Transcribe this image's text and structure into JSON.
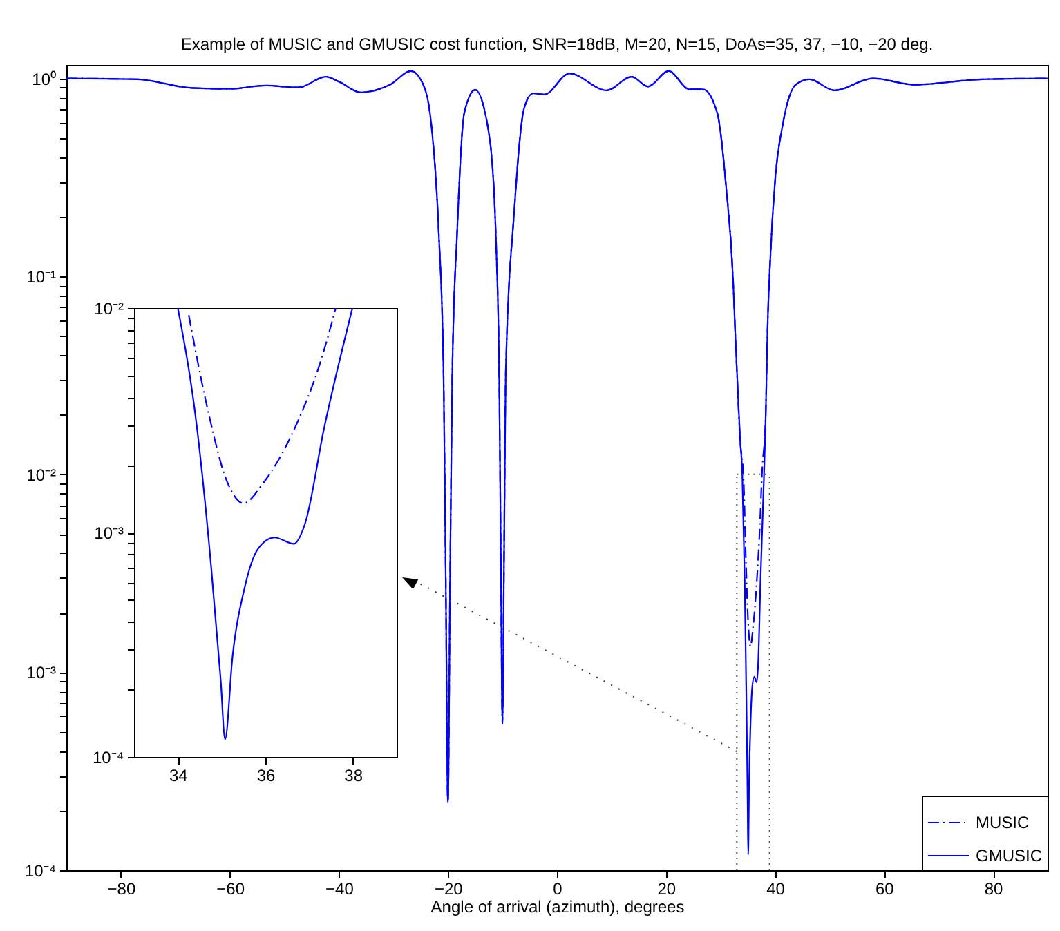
{
  "chart_data": [
    {
      "type": "line",
      "title": "Example of MUSIC and GMUSIC cost function, SNR=18dB, M=20, N=15, DoAs=35, 37, −10, −20 deg.",
      "xlabel": "Angle of arrival (azimuth), degrees",
      "log": "y",
      "legend": "bottom right",
      "ref_lines": [
        {
          "axis": "x",
          "value": 33,
          "color": "#555555",
          "line_style": "dotted"
        },
        {
          "axis": "x",
          "value": 39,
          "color": "#555555",
          "line_style": "dotted"
        }
      ],
      "xlim": [
        -90,
        90
      ],
      "xticks": [
        -80,
        -60,
        -40,
        -20,
        0,
        20,
        40,
        60,
        80
      ],
      "ylim": [
        0.0001,
        1.17
      ],
      "yticks": [
        {
          "value": 0.0001,
          "label": "10⁻⁴"
        },
        {
          "value": 0.0002,
          "label": null
        },
        {
          "value": 0.0003,
          "label": null
        },
        {
          "value": 0.0004,
          "label": null
        },
        {
          "value": 0.0005,
          "label": null
        },
        {
          "value": 0.0006,
          "label": null
        },
        {
          "value": 0.0007,
          "label": null
        },
        {
          "value": 0.0008,
          "label": null
        },
        {
          "value": 0.0009,
          "label": null
        },
        {
          "value": 0.001,
          "label": "10⁻³"
        },
        {
          "value": 0.002,
          "label": null
        },
        {
          "value": 0.003,
          "label": null
        },
        {
          "value": 0.004,
          "label": null
        },
        {
          "value": 0.005,
          "label": null
        },
        {
          "value": 0.006,
          "label": null
        },
        {
          "value": 0.007,
          "label": null
        },
        {
          "value": 0.008,
          "label": null
        },
        {
          "value": 0.009,
          "label": null
        },
        {
          "value": 0.01,
          "label": "10⁻²"
        },
        {
          "value": 0.02,
          "label": null
        },
        {
          "value": 0.03,
          "label": null
        },
        {
          "value": 0.04,
          "label": null
        },
        {
          "value": 0.05,
          "label": null
        },
        {
          "value": 0.06,
          "label": null
        },
        {
          "value": 0.07,
          "label": null
        },
        {
          "value": 0.08,
          "label": null
        },
        {
          "value": 0.09,
          "label": null
        },
        {
          "value": 0.1,
          "label": "10⁻¹"
        },
        {
          "value": 0.2,
          "label": null
        },
        {
          "value": 0.3,
          "label": null
        },
        {
          "value": 0.4,
          "label": null
        },
        {
          "value": 0.5,
          "label": null
        },
        {
          "value": 0.6,
          "label": null
        },
        {
          "value": 0.7,
          "label": null
        },
        {
          "value": 0.8,
          "label": null
        },
        {
          "value": 0.9,
          "label": null
        },
        {
          "value": 1,
          "label": "10⁰"
        }
      ],
      "series": [
        {
          "name": "MUSIC",
          "color": "#0000ff",
          "line_style": "dashed",
          "x": [
            -90,
            -77,
            -67,
            -60,
            -53.4,
            -47.4,
            -42.4,
            -39.9,
            -36,
            -30.6,
            -26.8,
            -24.6,
            -23,
            -21.7,
            -20.8,
            -20.4,
            -20,
            -19.6,
            -19.2,
            -18.3,
            -17,
            -15,
            -12.4,
            -11.1,
            -10.6,
            -10.3,
            -10,
            -9.7,
            -9.4,
            -7.8,
            -6,
            -4.4,
            -2.3,
            2.3,
            9.1,
            13.7,
            16.7,
            20.5,
            24.3,
            26.8,
            29.4,
            31,
            32.3,
            32.8,
            33.6,
            34.25,
            34.66,
            35.14,
            35.5,
            35.95,
            36.7,
            37.24,
            37.61,
            38.3,
            38.6,
            39.3,
            40,
            41.5,
            43.8,
            46.3,
            50.9,
            58,
            65.6,
            78,
            90
          ],
          "values": [
            1.0,
            0.99,
            0.895,
            0.886,
            0.92,
            0.9,
            1.02,
            0.96,
            0.85,
            0.93,
            1.09,
            0.94,
            0.57,
            0.17,
            0.032,
            0.003,
            0.00022,
            0.003,
            0.032,
            0.17,
            0.67,
            0.875,
            0.51,
            0.13,
            0.032,
            0.004,
            0.00055,
            0.004,
            0.032,
            0.22,
            0.71,
            0.84,
            0.83,
            1.06,
            0.87,
            1.02,
            0.91,
            1.09,
            0.88,
            0.88,
            0.67,
            0.29,
            0.097,
            0.045,
            0.015,
            0.0093,
            0.0037,
            0.00166,
            0.00135,
            0.00166,
            0.003,
            0.0056,
            0.01,
            0.02,
            0.05,
            0.15,
            0.3,
            0.6,
            0.93,
            0.99,
            0.87,
            1.0,
            0.93,
            0.99,
            1.0
          ]
        },
        {
          "name": "GMUSIC",
          "color": "#0000ff",
          "line_style": "solid",
          "x": [
            -90,
            -77,
            -67,
            -60,
            -53.4,
            -47.4,
            -42.4,
            -39.9,
            -36,
            -30.6,
            -26.8,
            -24.6,
            -23,
            -21.7,
            -20.8,
            -20.4,
            -20,
            -19.6,
            -19.2,
            -18.3,
            -17,
            -15,
            -12.4,
            -11.1,
            -10.6,
            -10.3,
            -10,
            -9.7,
            -9.4,
            -7.8,
            -6,
            -4.4,
            -2.3,
            2.3,
            9.1,
            13.7,
            16.7,
            20.5,
            24.3,
            26.8,
            29.4,
            31,
            32.3,
            32.8,
            33.6,
            34.0,
            34.44,
            34.76,
            34.98,
            35.08,
            35.25,
            35.52,
            35.84,
            36.21,
            36.65,
            36.91,
            37.34,
            37.99,
            38.3,
            38.6,
            39.3,
            40,
            41.5,
            43.8,
            46.3,
            50.9,
            58,
            65.6,
            78,
            90
          ],
          "values": [
            1.0,
            0.99,
            0.895,
            0.886,
            0.92,
            0.9,
            1.02,
            0.96,
            0.85,
            0.93,
            1.09,
            0.94,
            0.57,
            0.17,
            0.032,
            0.003,
            0.00022,
            0.003,
            0.032,
            0.17,
            0.67,
            0.875,
            0.51,
            0.13,
            0.032,
            0.004,
            0.00055,
            0.004,
            0.032,
            0.22,
            0.71,
            0.84,
            0.83,
            1.06,
            0.87,
            1.02,
            0.91,
            1.09,
            0.88,
            0.88,
            0.67,
            0.29,
            0.097,
            0.045,
            0.015,
            0.01,
            0.0029,
            0.00071,
            0.00022,
            0.00012,
            0.00028,
            0.00056,
            0.00085,
            0.00095,
            0.00089,
            0.0011,
            0.0029,
            0.01,
            0.02,
            0.05,
            0.15,
            0.3,
            0.6,
            0.93,
            0.99,
            0.87,
            1.0,
            0.93,
            0.99,
            1.0
          ]
        }
      ]
    },
    {
      "type": "line",
      "log": "y",
      "xlim": [
        33,
        39
      ],
      "xticks": [
        34,
        36,
        38
      ],
      "ylim": [
        0.0001,
        0.01
      ],
      "yticks": [
        {
          "value": 0.0001,
          "label": "10⁻⁴"
        },
        {
          "value": 0.0002,
          "label": null
        },
        {
          "value": 0.0003,
          "label": null
        },
        {
          "value": 0.0004,
          "label": null
        },
        {
          "value": 0.0005,
          "label": null
        },
        {
          "value": 0.0006,
          "label": null
        },
        {
          "value": 0.0007,
          "label": null
        },
        {
          "value": 0.0008,
          "label": null
        },
        {
          "value": 0.0009,
          "label": null
        },
        {
          "value": 0.001,
          "label": "10⁻³"
        },
        {
          "value": 0.002,
          "label": null
        },
        {
          "value": 0.003,
          "label": null
        },
        {
          "value": 0.004,
          "label": null
        },
        {
          "value": 0.005,
          "label": null
        },
        {
          "value": 0.006,
          "label": null
        },
        {
          "value": 0.007,
          "label": null
        },
        {
          "value": 0.008,
          "label": null
        },
        {
          "value": 0.009,
          "label": null
        },
        {
          "value": 0.01,
          "label": "10⁻²"
        }
      ],
      "series": [
        {
          "color": "#0000ff",
          "line_style": "dashed",
          "x": [
            34.25,
            34.66,
            35.14,
            35.5,
            35.95,
            36.7,
            37.24,
            37.61
          ],
          "values": [
            0.0093,
            0.0037,
            0.00166,
            0.00135,
            0.00166,
            0.003,
            0.0056,
            0.01
          ]
        },
        {
          "color": "#0000ff",
          "line_style": "solid",
          "x": [
            34.0,
            34.44,
            34.76,
            34.98,
            35.08,
            35.25,
            35.52,
            35.84,
            36.21,
            36.65,
            36.91,
            37.34,
            37.99
          ],
          "values": [
            0.01,
            0.0029,
            0.00071,
            0.00022,
            0.00012,
            0.00028,
            0.00056,
            0.00085,
            0.00095,
            0.00089,
            0.0011,
            0.0029,
            0.01
          ]
        }
      ]
    }
  ]
}
